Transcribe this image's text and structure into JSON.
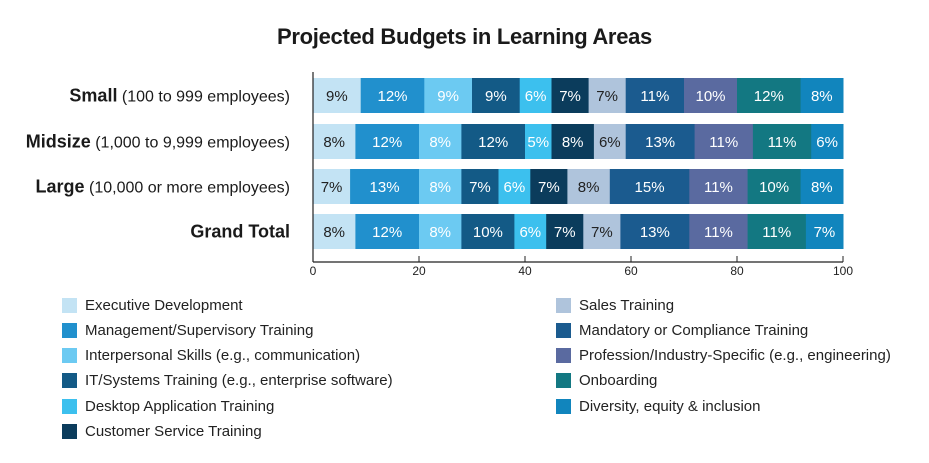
{
  "chart_data": {
    "type": "bar",
    "orientation": "horizontal",
    "stacked": true,
    "title": "Projected Budgets in Learning Areas",
    "xlabel": "",
    "ylabel": "",
    "xlim": [
      0,
      100
    ],
    "xticks": [
      "0",
      "20",
      "40",
      "60",
      "80",
      "100"
    ],
    "grid": false,
    "legend_position": "bottom",
    "categories": [
      {
        "bold": "Small",
        "detail": " (100 to 999 employees)"
      },
      {
        "bold": "Midsize",
        "detail": " (1,000 to 9,999 employees)"
      },
      {
        "bold": "Large",
        "detail": " (10,000 or more employees)"
      },
      {
        "bold": "Grand Total",
        "detail": ""
      }
    ],
    "series": [
      {
        "name": "Executive Development",
        "color": "#c3e3f4",
        "text_color": "#222222",
        "values": [
          9,
          8,
          7,
          8
        ]
      },
      {
        "name": "Management/Supervisory Training",
        "color": "#2190cd",
        "text_color": "#ffffff",
        "values": [
          12,
          12,
          13,
          12
        ]
      },
      {
        "name": "Interpersonal Skills (e.g., communication)",
        "color": "#6ccaf2",
        "text_color": "#ffffff",
        "values": [
          9,
          8,
          8,
          8
        ]
      },
      {
        "name": "IT/Systems Training (e.g., enterprise software)",
        "color": "#135a86",
        "text_color": "#ffffff",
        "values": [
          9,
          12,
          7,
          10
        ]
      },
      {
        "name": "Desktop Application Training",
        "color": "#3cc0ee",
        "text_color": "#ffffff",
        "values": [
          6,
          5,
          6,
          6
        ]
      },
      {
        "name": "Customer Service Training",
        "color": "#0b3c5c",
        "text_color": "#ffffff",
        "values": [
          7,
          8,
          7,
          7
        ]
      },
      {
        "name": "Sales Training",
        "color": "#afc4dc",
        "text_color": "#222222",
        "values": [
          7,
          6,
          8,
          7
        ]
      },
      {
        "name": "Mandatory or Compliance Training",
        "color": "#1b5b8f",
        "text_color": "#ffffff",
        "values": [
          11,
          13,
          15,
          13
        ]
      },
      {
        "name": "Profession/Industry-Specific (e.g., engineering)",
        "color": "#5a6aa0",
        "text_color": "#ffffff",
        "values": [
          10,
          11,
          11,
          11
        ]
      },
      {
        "name": "Onboarding",
        "color": "#137882",
        "text_color": "#ffffff",
        "values": [
          12,
          11,
          10,
          11
        ]
      },
      {
        "name": "Diversity, equity & inclusion",
        "color": "#1185bd",
        "text_color": "#ffffff",
        "values": [
          8,
          6,
          8,
          7
        ]
      }
    ]
  }
}
